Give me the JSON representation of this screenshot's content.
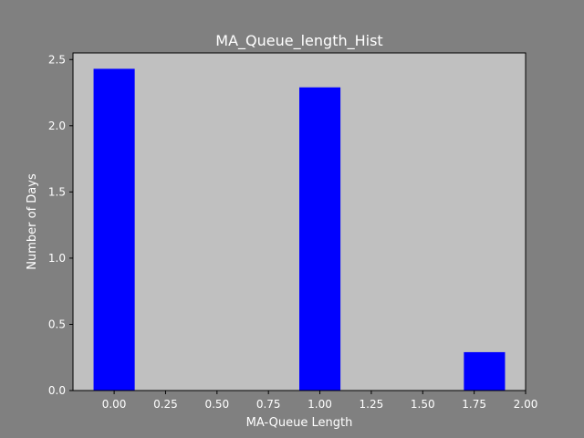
{
  "chart_data": {
    "type": "bar",
    "title": "MA_Queue_length_Hist",
    "xlabel": "MA-Queue Length",
    "ylabel": "Number of Days",
    "xlim": [
      -0.2,
      2.0
    ],
    "ylim": [
      0,
      2.55
    ],
    "bars": [
      {
        "x_start": -0.1,
        "x_end": 0.1,
        "value": 2.43
      },
      {
        "x_start": 0.9,
        "x_end": 1.1,
        "value": 2.29
      },
      {
        "x_start": 1.7,
        "x_end": 1.9,
        "value": 0.29
      }
    ],
    "xticks": [
      {
        "value": 0.0,
        "label": "0.00"
      },
      {
        "value": 0.25,
        "label": "0.25"
      },
      {
        "value": 0.5,
        "label": "0.50"
      },
      {
        "value": 0.75,
        "label": "0.75"
      },
      {
        "value": 1.0,
        "label": "1.00"
      },
      {
        "value": 1.25,
        "label": "1.25"
      },
      {
        "value": 1.5,
        "label": "1.50"
      },
      {
        "value": 1.75,
        "label": "1.75"
      },
      {
        "value": 2.0,
        "label": "2.00"
      }
    ],
    "yticks": [
      {
        "value": 0.0,
        "label": "0.0"
      },
      {
        "value": 0.5,
        "label": "0.5"
      },
      {
        "value": 1.0,
        "label": "1.0"
      },
      {
        "value": 1.5,
        "label": "1.5"
      },
      {
        "value": 2.0,
        "label": "2.0"
      },
      {
        "value": 2.5,
        "label": "2.5"
      }
    ],
    "grid": false,
    "legend": "none",
    "colors": {
      "figure_background": "#808080",
      "plot_background": "#c0c0c0",
      "bar_fill": "#0000ff",
      "text": "#ffffff",
      "axes": "#000000"
    }
  }
}
